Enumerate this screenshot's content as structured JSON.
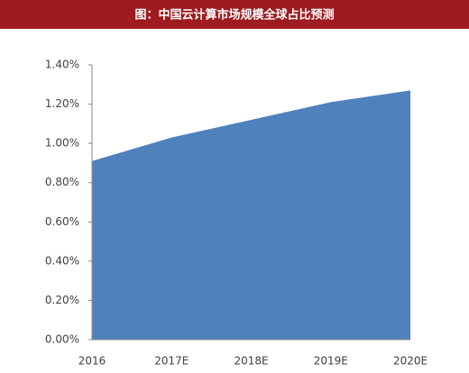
{
  "chart_data": {
    "type": "area",
    "title": "图：中国云计算市场规模全球占比预测",
    "categories": [
      "2016",
      "2017E",
      "2018E",
      "2019E",
      "2020E"
    ],
    "values": [
      0.91,
      1.03,
      1.12,
      1.21,
      1.27
    ],
    "color": "#4f81bd",
    "ylim": [
      0,
      1.4
    ],
    "yticks": [
      {
        "value": 0,
        "label": "0.00%"
      },
      {
        "value": 0.2,
        "label": "0.20%"
      },
      {
        "value": 0.4,
        "label": "0.40%"
      },
      {
        "value": 0.6,
        "label": "0.60%"
      },
      {
        "value": 0.8,
        "label": "0.80%"
      },
      {
        "value": 1.0,
        "label": "1.00%"
      },
      {
        "value": 1.2,
        "label": "1.20%"
      },
      {
        "value": 1.4,
        "label": "1.40%"
      }
    ],
    "grid": false
  }
}
